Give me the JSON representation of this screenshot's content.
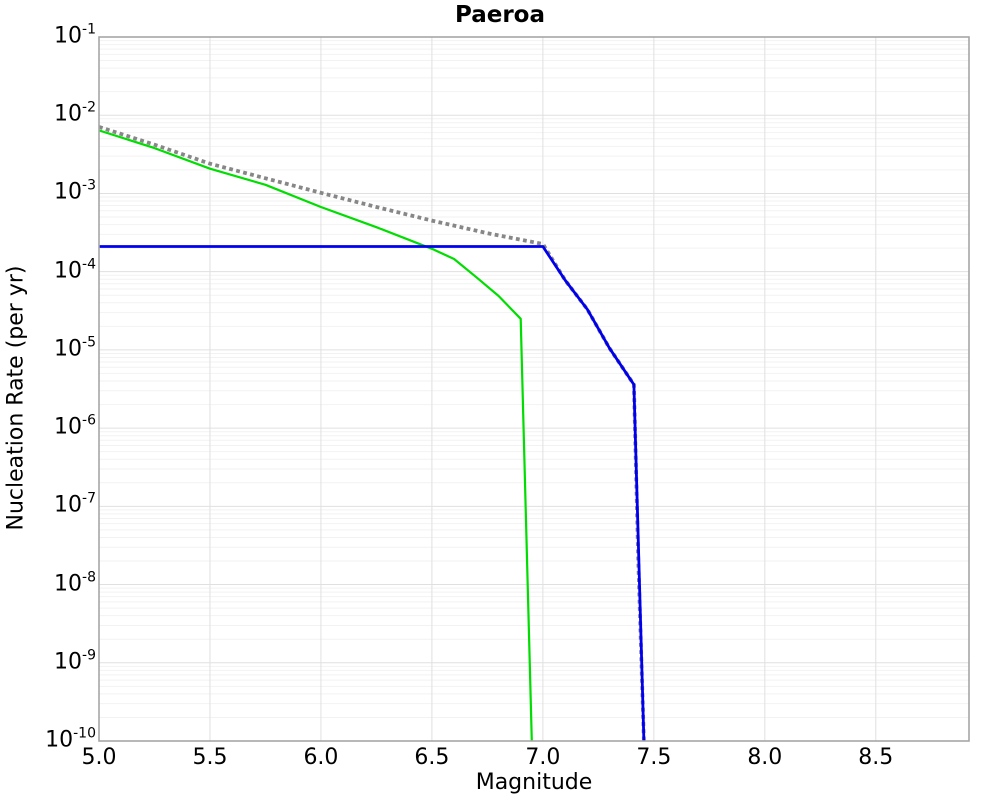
{
  "chart_data": {
    "type": "line",
    "title": "Paeroa",
    "xlabel": "Magnitude",
    "ylabel": "Nucleation Rate (per yr)",
    "xlim": [
      5.0,
      8.92
    ],
    "ylim_log10": [
      -10,
      -1
    ],
    "x_scale": "linear",
    "y_scale": "log",
    "x_tick_values": [
      5.0,
      5.5,
      6.0,
      6.5,
      7.0,
      7.5,
      8.0,
      8.5
    ],
    "x_tick_labels": [
      "5.0",
      "5.5",
      "6.0",
      "6.5",
      "7.0",
      "7.5",
      "8.0",
      "8.5"
    ],
    "y_tick_exponents": [
      -1,
      -2,
      -3,
      -4,
      -5,
      -6,
      -7,
      -8,
      -9,
      -10
    ],
    "y_tick_base": "10",
    "grid": {
      "major_color": "#e0e0e0",
      "minor_color": "#f2f2f2",
      "show_vertical_major": true,
      "log_minor_multipliers": [
        2,
        3,
        4,
        5,
        6,
        7,
        8,
        9
      ]
    },
    "frame_color": "#a6a6a6",
    "background_color": "#ffffff",
    "legend": null,
    "series": [
      {
        "name": "green-solid-curve",
        "color": "#00dd00",
        "style": "solid",
        "width": 2.2,
        "points": [
          [
            5.0,
            0.0064
          ],
          [
            5.25,
            0.0038
          ],
          [
            5.5,
            0.00207
          ],
          [
            5.75,
            0.00129
          ],
          [
            6.0,
            0.00067
          ],
          [
            6.25,
            0.00037
          ],
          [
            6.5,
            0.000196
          ],
          [
            6.6,
            0.000145
          ],
          [
            6.7,
            8.5e-05
          ],
          [
            6.8,
            4.9e-05
          ],
          [
            6.9,
            2.5e-05
          ],
          [
            6.95,
            1e-10
          ]
        ]
      },
      {
        "name": "gray-dotted-curve",
        "color": "#878787",
        "style": "dotted",
        "width": 3.8,
        "points": [
          [
            5.0,
            0.0071
          ],
          [
            5.25,
            0.0042
          ],
          [
            5.5,
            0.0024
          ],
          [
            5.75,
            0.00156
          ],
          [
            6.0,
            0.00102
          ],
          [
            6.25,
            0.00067
          ],
          [
            6.5,
            0.00045
          ],
          [
            6.75,
            0.00031
          ],
          [
            7.0,
            0.000226
          ],
          [
            7.1,
            7.8e-05
          ],
          [
            7.2,
            3.3e-05
          ],
          [
            7.3,
            1.05e-05
          ],
          [
            7.41,
            3.6e-06
          ],
          [
            7.43,
            2e-08
          ],
          [
            7.455,
            1e-10
          ]
        ]
      },
      {
        "name": "blue-solid-curve",
        "color": "#0000ee",
        "style": "solid",
        "width": 2.8,
        "points": [
          [
            5.0,
            0.00021
          ],
          [
            7.0,
            0.00021
          ],
          [
            7.1,
            7.8e-05
          ],
          [
            7.2,
            3.3e-05
          ],
          [
            7.3,
            1.05e-05
          ],
          [
            7.41,
            3.6e-06
          ],
          [
            7.455,
            1e-10
          ]
        ]
      }
    ]
  }
}
